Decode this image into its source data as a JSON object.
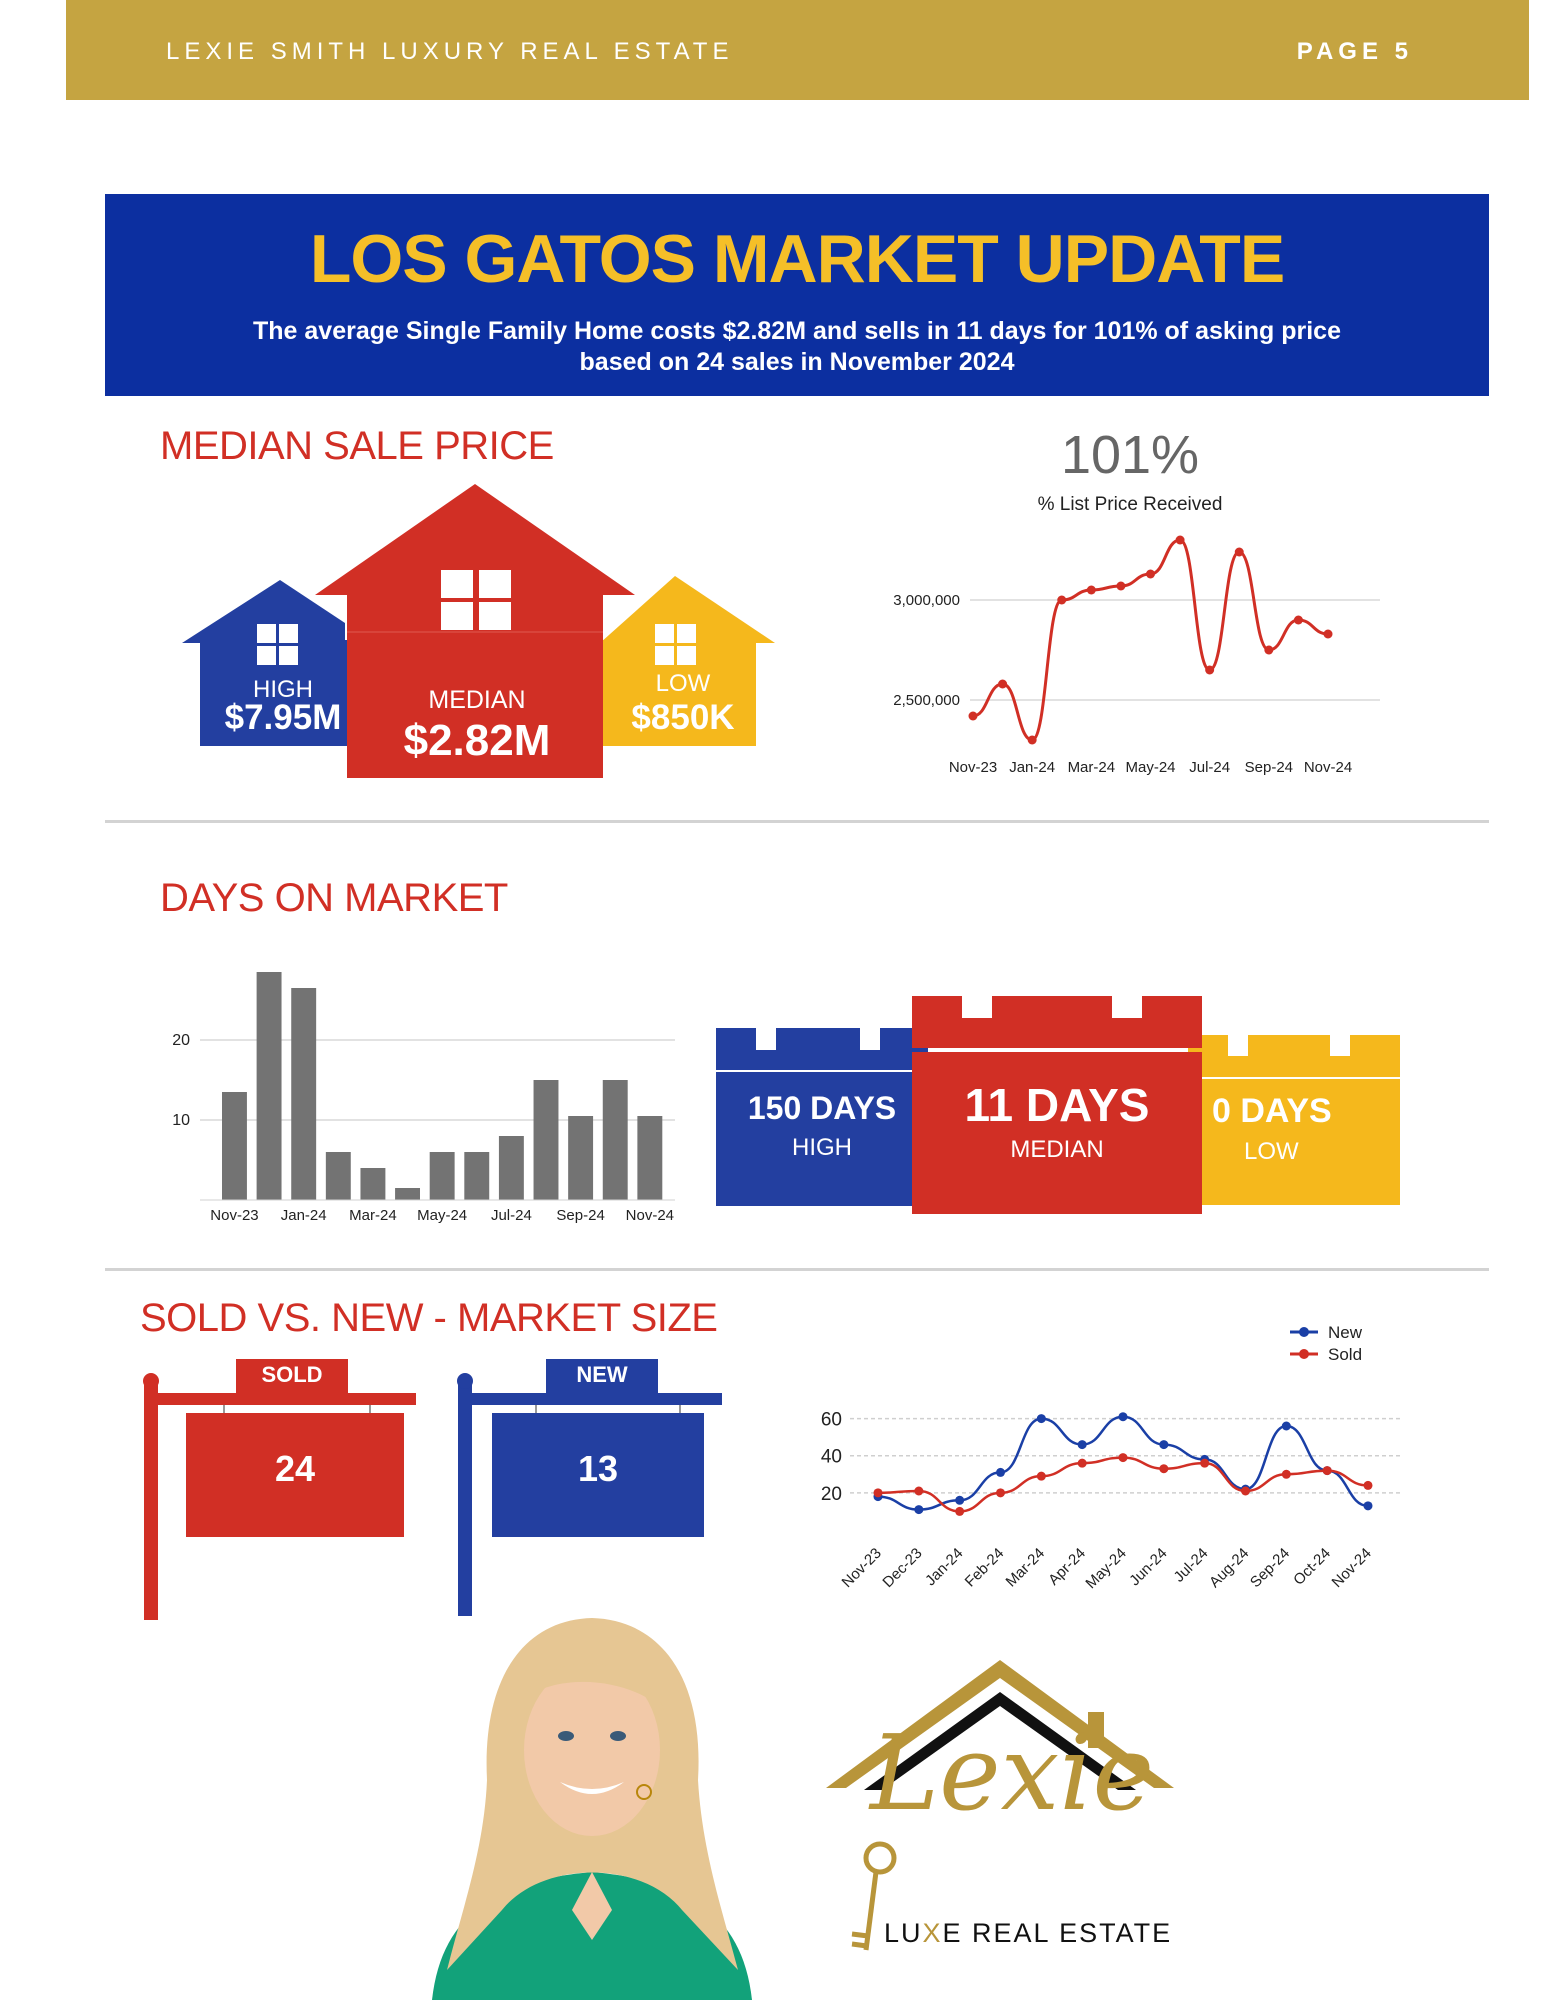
{
  "header": {
    "brand": "LEXIE SMITH LUXURY REAL ESTATE",
    "page": "PAGE 5"
  },
  "banner": {
    "title": "LOS GATOS MARKET UPDATE",
    "subtitle_line1": "The average Single Family Home costs $2.82M and sells in 11 days for 101% of asking price",
    "subtitle_line2": "based on 24 sales in November 2024"
  },
  "median_sale_price": {
    "title": "MEDIAN SALE PRICE",
    "high": {
      "label": "HIGH",
      "value": "$7.95M"
    },
    "median": {
      "label": "MEDIAN",
      "value": "$2.82M"
    },
    "low": {
      "label": "LOW",
      "value": "$850K"
    },
    "list_price_pct": "101%",
    "list_price_caption": "% List Price Received"
  },
  "days_on_market": {
    "title": "DAYS ON MARKET",
    "high": {
      "value": "150 DAYS",
      "label": "HIGH"
    },
    "median": {
      "value": "11 DAYS",
      "label": "MEDIAN"
    },
    "low": {
      "value": "0 DAYS",
      "label": "LOW"
    }
  },
  "market_size": {
    "title": "SOLD VS. NEW - MARKET SIZE",
    "sold": {
      "label": "SOLD",
      "value": "24"
    },
    "new": {
      "label": "NEW",
      "value": "13"
    }
  },
  "logo": {
    "script": "Lexie",
    "tagline_pre": "LU",
    "tagline_x": "X",
    "tagline_post": "E REAL ESTATE"
  },
  "colors": {
    "gold": "#c5a441",
    "blue": "#0c2fa0",
    "red": "#d12f25",
    "yellow": "#f5b81c",
    "green": "#12a27a"
  },
  "chart_data": [
    {
      "type": "line",
      "x": [
        "Nov-23",
        "Dec-23",
        "Jan-24",
        "Feb-24",
        "Mar-24",
        "Apr-24",
        "May-24",
        "Jun-24",
        "Jul-24",
        "Aug-24",
        "Sep-24",
        "Oct-24",
        "Nov-24"
      ],
      "tick_labels": [
        "Nov-23",
        "Jan-24",
        "Mar-24",
        "May-24",
        "Jul-24",
        "Sep-24",
        "Nov-24"
      ],
      "y_ticks": [
        "3,000,000",
        "2,500,000"
      ],
      "series": [
        {
          "values": [
            2420000,
            2580000,
            2300000,
            3000000,
            3050000,
            3070000,
            3130000,
            3300000,
            2650000,
            3240000,
            2750000,
            2900000,
            2830000
          ]
        }
      ],
      "ylim": [
        2250000,
        3350000
      ],
      "grid": true
    },
    {
      "type": "bar",
      "categories": [
        "Nov-23",
        "Dec-23",
        "Jan-24",
        "Feb-24",
        "Mar-24",
        "Apr-24",
        "May-24",
        "Jun-24",
        "Jul-24",
        "Aug-24",
        "Sep-24",
        "Oct-24",
        "Nov-24"
      ],
      "tick_labels": [
        "Nov-23",
        "Jan-24",
        "Mar-24",
        "May-24",
        "Jul-24",
        "Sep-24",
        "Nov-24"
      ],
      "y_ticks": [
        "20",
        "10"
      ],
      "values": [
        13.5,
        28.5,
        26.5,
        6,
        4,
        1.5,
        6,
        6,
        8,
        15,
        10.5,
        15,
        10.5
      ],
      "ylim": [
        0,
        30
      ],
      "grid": true
    },
    {
      "type": "line",
      "x": [
        "Nov-23",
        "Dec-23",
        "Jan-24",
        "Feb-24",
        "Mar-24",
        "Apr-24",
        "May-24",
        "Jun-24",
        "Jul-24",
        "Aug-24",
        "Sep-24",
        "Oct-24",
        "Nov-24"
      ],
      "series": [
        {
          "name": "New",
          "color": "#1a3fa6",
          "values": [
            18,
            11,
            16,
            31,
            60,
            46,
            61,
            46,
            38,
            22,
            56,
            32,
            13
          ]
        },
        {
          "name": "Sold",
          "color": "#d12f25",
          "values": [
            20,
            21,
            10,
            20,
            29,
            36,
            39,
            33,
            36,
            21,
            30,
            32,
            24
          ]
        }
      ],
      "y_ticks": [
        "60",
        "40",
        "20"
      ],
      "ylim": [
        0,
        70
      ],
      "legend": "top-right",
      "grid": true
    }
  ]
}
